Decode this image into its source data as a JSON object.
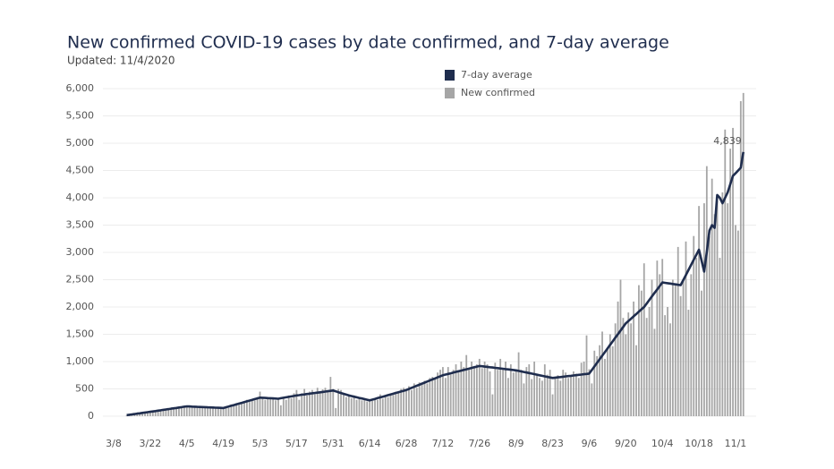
{
  "chart_data": {
    "type": "bar_line",
    "title": "New confirmed COVID-19 cases by date confirmed, and 7-day average",
    "subtitle": "Updated: 11/4/2020",
    "annotation": "4,839",
    "legend": "top",
    "grid": true,
    "ylim": [
      0,
      6000
    ],
    "yticks": [
      0,
      500,
      {
        "value": 1000,
        "label": "1,000"
      },
      {
        "value": 1500,
        "label": "1,500"
      },
      {
        "value": 2000,
        "label": "2,000"
      },
      {
        "value": 2500,
        "label": "2,500"
      },
      {
        "value": 3000,
        "label": "3,000"
      },
      {
        "value": 3500,
        "label": "3,500"
      },
      {
        "value": 4000,
        "label": "4,000"
      },
      {
        "value": 4500,
        "label": "4,500"
      },
      {
        "value": 5000,
        "label": "5,000"
      },
      {
        "value": 5500,
        "label": "5,500"
      },
      {
        "value": 6000,
        "label": "6,000"
      }
    ],
    "categories": [
      "3/8",
      null,
      null,
      null,
      null,
      null,
      null,
      null,
      null,
      null,
      null,
      null,
      null,
      null,
      "3/22",
      null,
      null,
      null,
      null,
      null,
      null,
      null,
      null,
      null,
      null,
      null,
      null,
      null,
      "4/5",
      null,
      null,
      null,
      null,
      null,
      null,
      null,
      null,
      null,
      null,
      null,
      null,
      null,
      "4/19",
      null,
      null,
      null,
      null,
      null,
      null,
      null,
      null,
      null,
      null,
      null,
      null,
      null,
      "5/3",
      null,
      null,
      null,
      null,
      null,
      null,
      null,
      null,
      null,
      null,
      null,
      null,
      null,
      "5/17",
      null,
      null,
      null,
      null,
      null,
      null,
      null,
      null,
      null,
      null,
      null,
      null,
      null,
      "5/31",
      null,
      null,
      null,
      null,
      null,
      null,
      null,
      null,
      null,
      null,
      null,
      null,
      null,
      "6/14",
      null,
      null,
      null,
      null,
      null,
      null,
      null,
      null,
      null,
      null,
      null,
      null,
      null,
      "6/28",
      null,
      null,
      null,
      null,
      null,
      null,
      null,
      null,
      null,
      null,
      null,
      null,
      null,
      "7/12",
      null,
      null,
      null,
      null,
      null,
      null,
      null,
      null,
      null,
      null,
      null,
      null,
      null,
      "7/26",
      null,
      null,
      null,
      null,
      null,
      null,
      null,
      null,
      null,
      null,
      null,
      null,
      null,
      "8/9",
      null,
      null,
      null,
      null,
      null,
      null,
      null,
      null,
      null,
      null,
      null,
      null,
      null,
      "8/23",
      null,
      null,
      null,
      null,
      null,
      null,
      null,
      null,
      null,
      null,
      null,
      null,
      null,
      "9/6",
      null,
      null,
      null,
      null,
      null,
      null,
      null,
      null,
      null,
      null,
      null,
      null,
      null,
      "9/20",
      null,
      null,
      null,
      null,
      null,
      null,
      null,
      null,
      null,
      null,
      null,
      null,
      null,
      "10/4",
      null,
      null,
      null,
      null,
      null,
      null,
      null,
      null,
      null,
      null,
      null,
      null,
      null,
      "10/18",
      null,
      null,
      null,
      null,
      null,
      null,
      null,
      null,
      null,
      null,
      null,
      null,
      null,
      "11/1",
      null,
      null,
      null
    ],
    "series": [
      {
        "name": "7-day average",
        "type": "line",
        "color": "#1f2d4e",
        "values": [
          null,
          null,
          null,
          null,
          null,
          20,
          27,
          33,
          40,
          47,
          53,
          60,
          67,
          73,
          80,
          87,
          94,
          101,
          109,
          116,
          123,
          130,
          137,
          144,
          151,
          159,
          166,
          173,
          180,
          178,
          176,
          174,
          171,
          169,
          167,
          165,
          163,
          161,
          159,
          156,
          154,
          152,
          150,
          164,
          177,
          191,
          204,
          218,
          231,
          245,
          259,
          272,
          286,
          299,
          313,
          326,
          340,
          337,
          334,
          331,
          329,
          326,
          323,
          320,
          329,
          337,
          346,
          354,
          363,
          371,
          380,
          386,
          393,
          399,
          406,
          412,
          419,
          425,
          431,
          438,
          444,
          451,
          457,
          464,
          470,
          455,
          440,
          425,
          410,
          395,
          380,
          369,
          358,
          346,
          335,
          324,
          313,
          301,
          290,
          304,
          317,
          331,
          344,
          358,
          371,
          385,
          399,
          412,
          426,
          439,
          453,
          466,
          480,
          499,
          519,
          538,
          557,
          576,
          596,
          615,
          634,
          654,
          673,
          692,
          711,
          731,
          750,
          762,
          774,
          786,
          799,
          811,
          823,
          835,
          847,
          859,
          871,
          884,
          896,
          908,
          920,
          914,
          909,
          903,
          897,
          891,
          886,
          880,
          874,
          869,
          863,
          857,
          851,
          846,
          840,
          830,
          820,
          810,
          800,
          790,
          780,
          770,
          760,
          750,
          740,
          730,
          720,
          710,
          700,
          706,
          711,
          717,
          723,
          729,
          734,
          740,
          746,
          751,
          757,
          763,
          769,
          774,
          780,
          846,
          911,
          977,
          1043,
          1109,
          1174,
          1240,
          1306,
          1371,
          1437,
          1503,
          1569,
          1634,
          1700,
          1743,
          1786,
          1829,
          1871,
          1914,
          1957,
          2000,
          2064,
          2129,
          2193,
          2257,
          2321,
          2386,
          2450,
          2443,
          2436,
          2429,
          2421,
          2414,
          2407,
          2400,
          2493,
          2586,
          2679,
          2771,
          2864,
          2957,
          3050,
          2850,
          2650,
          3000,
          3400,
          3500,
          3450,
          4050,
          4000,
          3900,
          4000,
          4100,
          4250,
          4400,
          4450,
          4500,
          4550,
          4839
        ]
      },
      {
        "name": "New confirmed",
        "type": "bar",
        "color": "#a6a6a6",
        "values": [
          null,
          null,
          null,
          null,
          null,
          15,
          30,
          35,
          45,
          40,
          60,
          55,
          75,
          70,
          90,
          95,
          80,
          110,
          105,
          130,
          110,
          140,
          125,
          160,
          140,
          170,
          150,
          190,
          175,
          190,
          160,
          185,
          150,
          180,
          165,
          170,
          150,
          175,
          140,
          165,
          145,
          160,
          140,
          180,
          150,
          210,
          190,
          240,
          210,
          260,
          240,
          300,
          260,
          310,
          290,
          350,
          450,
          330,
          300,
          350,
          310,
          340,
          290,
          310,
          200,
          350,
          300,
          380,
          330,
          420,
          480,
          300,
          420,
          500,
          380,
          450,
          480,
          400,
          520,
          430,
          490,
          520,
          450,
          720,
          500,
          150,
          500,
          480,
          420,
          350,
          400,
          330,
          380,
          300,
          330,
          290,
          310,
          270,
          280,
          280,
          330,
          300,
          400,
          320,
          380,
          350,
          420,
          390,
          450,
          430,
          500,
          520,
          480,
          550,
          480,
          600,
          520,
          620,
          580,
          650,
          600,
          700,
          720,
          680,
          800,
          850,
          900,
          700,
          900,
          760,
          850,
          950,
          800,
          1000,
          900,
          1120,
          850,
          1000,
          900,
          950,
          1050,
          880,
          1000,
          950,
          820,
          400,
          980,
          850,
          1050,
          880,
          1000,
          700,
          950,
          800,
          860,
          1170,
          850,
          600,
          900,
          950,
          680,
          1000,
          780,
          700,
          650,
          950,
          760,
          850,
          400,
          700,
          750,
          650,
          850,
          800,
          700,
          750,
          820,
          780,
          700,
          980,
          1000,
          1480,
          860,
          600,
          1200,
          1100,
          1300,
          1550,
          1050,
          1250,
          1500,
          1280,
          1700,
          2100,
          2500,
          1800,
          1500,
          1900,
          1700,
          2100,
          1300,
          2400,
          2300,
          2800,
          1800,
          2000,
          2500,
          1600,
          2850,
          2600,
          2880,
          1850,
          2000,
          1700,
          2500,
          2400,
          3100,
          2200,
          2500,
          3200,
          1950,
          2600,
          3300,
          2900,
          3850,
          2300,
          3900,
          4580,
          3300,
          4350,
          3700,
          3950,
          2900,
          4100,
          5250,
          3900,
          4900,
          5280,
          3500,
          3400,
          5770,
          5920
        ]
      }
    ]
  }
}
